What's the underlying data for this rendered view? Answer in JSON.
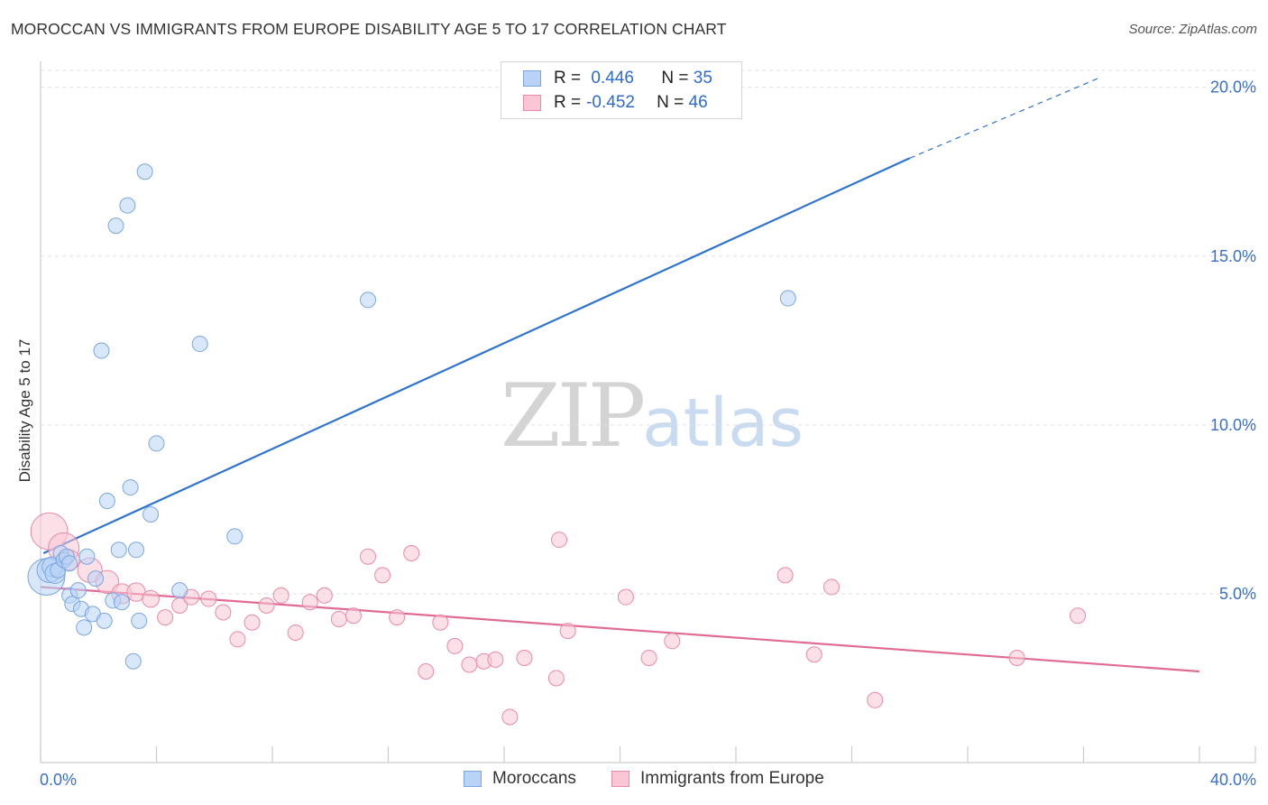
{
  "header": {
    "title": "MOROCCAN VS IMMIGRANTS FROM EUROPE DISABILITY AGE 5 TO 17 CORRELATION CHART",
    "source": "Source: ZipAtlas.com"
  },
  "watermark": {
    "zip": "ZIP",
    "atlas": "atlas"
  },
  "legend": {
    "rows": [
      {
        "r_label": "R = ",
        "r_value": "0.446",
        "n_label": "N = ",
        "n_value": "35"
      },
      {
        "r_label": "R = ",
        "r_value": "-0.452",
        "n_label": "N = ",
        "n_value": "46"
      }
    ]
  },
  "colors": {
    "blue_fill": "#b8d3f5",
    "blue_stroke": "#7aa6e0",
    "blue_line": "#2f74d0",
    "pink_fill": "#f9c6d6",
    "pink_stroke": "#e88aa8",
    "pink_line": "#e06c96"
  },
  "chart_data": {
    "type": "scatter",
    "title": "MOROCCAN VS IMMIGRANTS FROM EUROPE DISABILITY AGE 5 TO 17 CORRELATION CHART",
    "xlabel": "",
    "ylabel": "Disability Age 5 to 17",
    "xlim": [
      0,
      40
    ],
    "ylim": [
      0,
      20
    ],
    "x_tick_labels": [
      "0.0%",
      "40.0%"
    ],
    "y_ticks": [
      5,
      10,
      15,
      20
    ],
    "y_tick_labels": [
      "5.0%",
      "10.0%",
      "15.0%",
      "20.0%"
    ],
    "grid": true,
    "legend_position": "bottom",
    "series": [
      {
        "name": "Moroccans",
        "color": "#7aa6e0",
        "r": 0.446,
        "n": 35,
        "trend": {
          "x0": 0.1,
          "y0": 6.2,
          "x1": 30.0,
          "y1": 17.9,
          "dash_to_x": 36.6,
          "dash_to_y": 20.3
        },
        "points": [
          {
            "x": 0.2,
            "y": 5.5,
            "s": 2.4
          },
          {
            "x": 0.3,
            "y": 5.7,
            "s": 1.6
          },
          {
            "x": 0.4,
            "y": 5.8,
            "s": 1.3
          },
          {
            "x": 0.5,
            "y": 5.6,
            "s": 1.3
          },
          {
            "x": 0.6,
            "y": 5.7,
            "s": 1.0
          },
          {
            "x": 0.7,
            "y": 6.2,
            "s": 1.0
          },
          {
            "x": 0.8,
            "y": 6.0,
            "s": 1.0
          },
          {
            "x": 0.9,
            "y": 6.1,
            "s": 1.0
          },
          {
            "x": 1.0,
            "y": 5.9,
            "s": 1.0
          },
          {
            "x": 1.0,
            "y": 4.95,
            "s": 1.0
          },
          {
            "x": 1.1,
            "y": 4.7,
            "s": 1.0
          },
          {
            "x": 1.3,
            "y": 5.1,
            "s": 1.0
          },
          {
            "x": 1.4,
            "y": 4.55,
            "s": 1.0
          },
          {
            "x": 1.5,
            "y": 4.0,
            "s": 1.0
          },
          {
            "x": 1.6,
            "y": 6.1,
            "s": 1.0
          },
          {
            "x": 1.8,
            "y": 4.4,
            "s": 1.0
          },
          {
            "x": 1.9,
            "y": 5.45,
            "s": 1.0
          },
          {
            "x": 2.1,
            "y": 12.2,
            "s": 1.0
          },
          {
            "x": 2.2,
            "y": 4.2,
            "s": 1.0
          },
          {
            "x": 2.3,
            "y": 7.75,
            "s": 1.0
          },
          {
            "x": 2.5,
            "y": 4.8,
            "s": 1.0
          },
          {
            "x": 2.6,
            "y": 15.9,
            "s": 1.0
          },
          {
            "x": 2.7,
            "y": 6.3,
            "s": 1.0
          },
          {
            "x": 2.8,
            "y": 4.75,
            "s": 1.0
          },
          {
            "x": 3.0,
            "y": 16.5,
            "s": 1.0
          },
          {
            "x": 3.1,
            "y": 8.15,
            "s": 1.0
          },
          {
            "x": 3.2,
            "y": 3.0,
            "s": 1.0
          },
          {
            "x": 3.3,
            "y": 6.3,
            "s": 1.0
          },
          {
            "x": 3.4,
            "y": 4.2,
            "s": 1.0
          },
          {
            "x": 3.6,
            "y": 17.5,
            "s": 1.0
          },
          {
            "x": 3.8,
            "y": 7.35,
            "s": 1.0
          },
          {
            "x": 4.0,
            "y": 9.45,
            "s": 1.0
          },
          {
            "x": 4.8,
            "y": 5.1,
            "s": 1.0
          },
          {
            "x": 5.5,
            "y": 12.4,
            "s": 1.0
          },
          {
            "x": 6.7,
            "y": 6.7,
            "s": 1.0
          },
          {
            "x": 11.3,
            "y": 13.7,
            "s": 1.0
          },
          {
            "x": 25.8,
            "y": 13.75,
            "s": 1.0
          }
        ]
      },
      {
        "name": "Immigrants from Europe",
        "color": "#e88aa8",
        "r": -0.452,
        "n": 46,
        "trend": {
          "x0": 0.0,
          "y0": 5.2,
          "x1": 40.0,
          "y1": 2.7
        },
        "points": [
          {
            "x": 0.3,
            "y": 6.85,
            "s": 2.4
          },
          {
            "x": 0.8,
            "y": 6.35,
            "s": 2.0
          },
          {
            "x": 1.0,
            "y": 6.0,
            "s": 1.3
          },
          {
            "x": 1.7,
            "y": 5.7,
            "s": 1.6
          },
          {
            "x": 2.3,
            "y": 5.35,
            "s": 1.5
          },
          {
            "x": 2.8,
            "y": 5.0,
            "s": 1.3
          },
          {
            "x": 3.3,
            "y": 5.05,
            "s": 1.2
          },
          {
            "x": 3.8,
            "y": 4.85,
            "s": 1.1
          },
          {
            "x": 4.3,
            "y": 4.3,
            "s": 1.0
          },
          {
            "x": 4.8,
            "y": 4.65,
            "s": 1.0
          },
          {
            "x": 5.2,
            "y": 4.9,
            "s": 1.0
          },
          {
            "x": 5.8,
            "y": 4.85,
            "s": 1.0
          },
          {
            "x": 6.3,
            "y": 4.45,
            "s": 1.0
          },
          {
            "x": 6.8,
            "y": 3.65,
            "s": 1.0
          },
          {
            "x": 7.3,
            "y": 4.15,
            "s": 1.0
          },
          {
            "x": 7.8,
            "y": 4.65,
            "s": 1.0
          },
          {
            "x": 8.3,
            "y": 4.95,
            "s": 1.0
          },
          {
            "x": 8.8,
            "y": 3.85,
            "s": 1.0
          },
          {
            "x": 9.3,
            "y": 4.75,
            "s": 1.0
          },
          {
            "x": 9.8,
            "y": 4.95,
            "s": 1.0
          },
          {
            "x": 10.3,
            "y": 4.25,
            "s": 1.0
          },
          {
            "x": 10.8,
            "y": 4.35,
            "s": 1.0
          },
          {
            "x": 11.3,
            "y": 6.1,
            "s": 1.0
          },
          {
            "x": 11.8,
            "y": 5.55,
            "s": 1.0
          },
          {
            "x": 12.3,
            "y": 4.3,
            "s": 1.0
          },
          {
            "x": 12.8,
            "y": 6.2,
            "s": 1.0
          },
          {
            "x": 13.3,
            "y": 2.7,
            "s": 1.0
          },
          {
            "x": 13.8,
            "y": 4.15,
            "s": 1.0
          },
          {
            "x": 14.3,
            "y": 3.45,
            "s": 1.0
          },
          {
            "x": 14.8,
            "y": 2.9,
            "s": 1.0
          },
          {
            "x": 15.3,
            "y": 3.0,
            "s": 1.0
          },
          {
            "x": 15.7,
            "y": 3.05,
            "s": 1.0
          },
          {
            "x": 16.2,
            "y": 1.35,
            "s": 1.0
          },
          {
            "x": 16.7,
            "y": 3.1,
            "s": 1.0
          },
          {
            "x": 17.8,
            "y": 2.5,
            "s": 1.0
          },
          {
            "x": 17.9,
            "y": 6.6,
            "s": 1.0
          },
          {
            "x": 18.2,
            "y": 3.9,
            "s": 1.0
          },
          {
            "x": 20.2,
            "y": 4.9,
            "s": 1.0
          },
          {
            "x": 21.0,
            "y": 3.1,
            "s": 1.0
          },
          {
            "x": 21.8,
            "y": 3.6,
            "s": 1.0
          },
          {
            "x": 25.7,
            "y": 5.55,
            "s": 1.0
          },
          {
            "x": 26.7,
            "y": 3.2,
            "s": 1.0
          },
          {
            "x": 27.3,
            "y": 5.2,
            "s": 1.0
          },
          {
            "x": 28.8,
            "y": 1.85,
            "s": 1.0
          },
          {
            "x": 33.7,
            "y": 3.1,
            "s": 1.0
          },
          {
            "x": 35.8,
            "y": 4.35,
            "s": 1.0
          }
        ]
      }
    ]
  }
}
